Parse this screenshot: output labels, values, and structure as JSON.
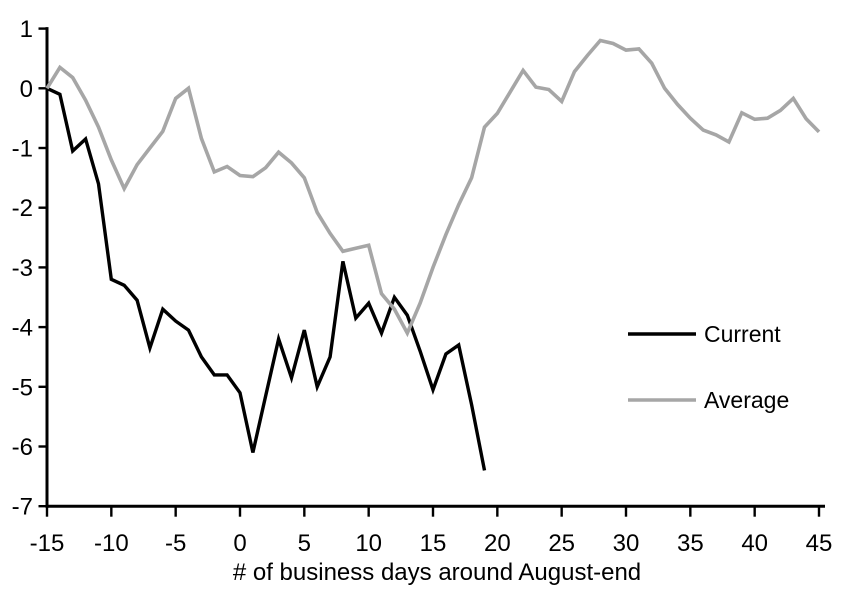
{
  "chart_data": {
    "type": "line",
    "title": "",
    "xlabel": "# of business days around August-end",
    "ylabel": "",
    "x_range": [
      -15,
      45
    ],
    "y_range": [
      1,
      -7
    ],
    "x_ticks": [
      -15,
      -10,
      -5,
      0,
      5,
      10,
      15,
      20,
      25,
      30,
      35,
      40,
      45
    ],
    "y_ticks": [
      1,
      0,
      -1,
      -2,
      -3,
      -4,
      -5,
      -6,
      -7
    ],
    "grid": false,
    "legend_position": "middle-right",
    "series": [
      {
        "name": "Current",
        "color": "#000000",
        "stroke_width": 3.4,
        "x_start": -15,
        "x_step": 1,
        "values": [
          0,
          -0.1,
          -1.05,
          -0.85,
          -1.6,
          -3.2,
          -3.3,
          -3.55,
          -4.35,
          -3.7,
          -3.9,
          -4.05,
          -4.5,
          -4.8,
          -4.8,
          -5.1,
          -6.1,
          -5.15,
          -4.2,
          -4.85,
          -4.05,
          -5.0,
          -4.5,
          -2.9,
          -3.85,
          -3.6,
          -4.1,
          -3.5,
          -3.8,
          -4.4,
          -5.05,
          -4.45,
          -4.3,
          -5.3,
          -6.4
        ]
      },
      {
        "name": "Average",
        "color": "#a6a6a6",
        "stroke_width": 3.6,
        "x_start": -15,
        "x_step": 1,
        "values": [
          0,
          0.35,
          0.18,
          -0.2,
          -0.65,
          -1.2,
          -1.68,
          -1.28,
          -1.0,
          -0.72,
          -0.17,
          0.0,
          -0.84,
          -1.4,
          -1.31,
          -1.46,
          -1.48,
          -1.33,
          -1.07,
          -1.25,
          -1.5,
          -2.08,
          -2.43,
          -2.73,
          -2.68,
          -2.63,
          -3.44,
          -3.7,
          -4.1,
          -3.6,
          -3.0,
          -2.45,
          -1.95,
          -1.5,
          -0.65,
          -0.42,
          -0.06,
          0.3,
          0.02,
          -0.02,
          -0.22,
          0.28,
          0.55,
          0.8,
          0.75,
          0.64,
          0.66,
          0.42,
          0.0,
          -0.27,
          -0.5,
          -0.7,
          -0.78,
          -0.9,
          -0.41,
          -0.52,
          -0.5,
          -0.37,
          -0.17,
          -0.51,
          -0.73
        ]
      }
    ]
  }
}
